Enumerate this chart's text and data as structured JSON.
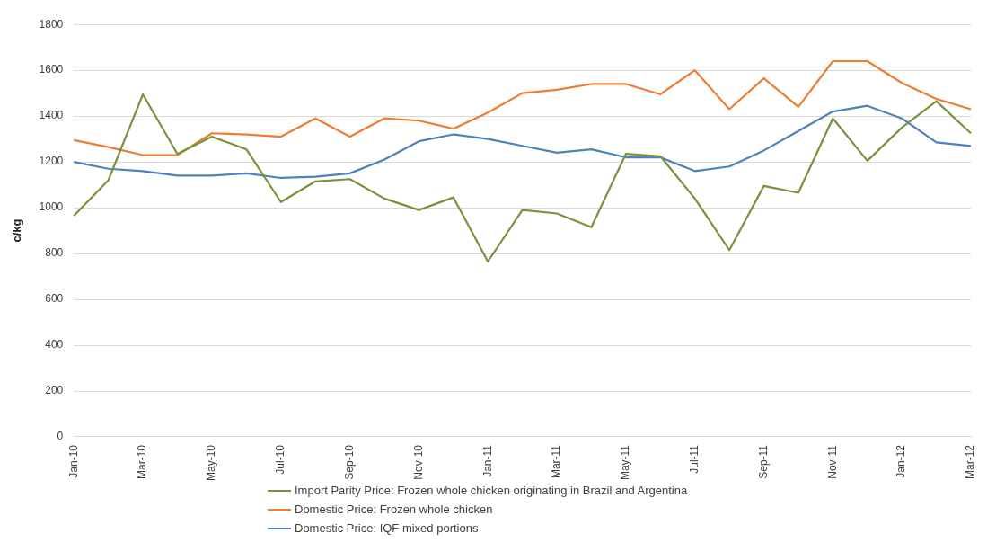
{
  "chart_data": {
    "type": "line",
    "ylabel": "c/kg",
    "categories": [
      "Jan-10",
      null,
      "Mar-10",
      null,
      "May-10",
      null,
      "Jul-10",
      null,
      "Sep-10",
      null,
      "Nov-10",
      null,
      "Jan-11",
      null,
      "Mar-11",
      null,
      "May-11",
      null,
      "Jul-11",
      null,
      "Sep-11",
      null,
      "Nov-11",
      null,
      "Jan-12",
      null,
      "Mar-12"
    ],
    "series": [
      {
        "name": "Import Parity Price: Frozen whole chicken originating in Brazil and Argentina",
        "color": "#77933c",
        "values": [
          965,
          1120,
          1495,
          1235,
          1310,
          1255,
          1025,
          1115,
          1125,
          1040,
          990,
          1045,
          765,
          990,
          975,
          915,
          1235,
          1225,
          1040,
          815,
          1095,
          1065,
          1390,
          1205,
          1350,
          1465,
          1325
        ]
      },
      {
        "name": "Domestic Price: Frozen whole chicken",
        "color": "#ed7d31",
        "values": [
          1295,
          1265,
          1230,
          1230,
          1325,
          1320,
          1310,
          1390,
          1310,
          1390,
          1380,
          1345,
          1415,
          1500,
          1515,
          1540,
          1540,
          1495,
          1600,
          1430,
          1565,
          1440,
          1640,
          1640,
          1545,
          1475,
          1430
        ]
      },
      {
        "name": "Domestic Price: IQF mixed portions",
        "color": "#4f81bd",
        "values": [
          1200,
          1170,
          1160,
          1140,
          1140,
          1150,
          1130,
          1135,
          1150,
          1210,
          1290,
          1320,
          1300,
          1270,
          1240,
          1255,
          1220,
          1220,
          1160,
          1180,
          1250,
          1335,
          1420,
          1445,
          1390,
          1285,
          1270
        ]
      }
    ],
    "ylim": [
      0,
      1800
    ],
    "yticks": [
      0,
      200,
      400,
      600,
      800,
      1000,
      1200,
      1400,
      1600,
      1800
    ],
    "grid": "y",
    "legend": "bottom",
    "marker": "none",
    "line_style": "solid"
  }
}
